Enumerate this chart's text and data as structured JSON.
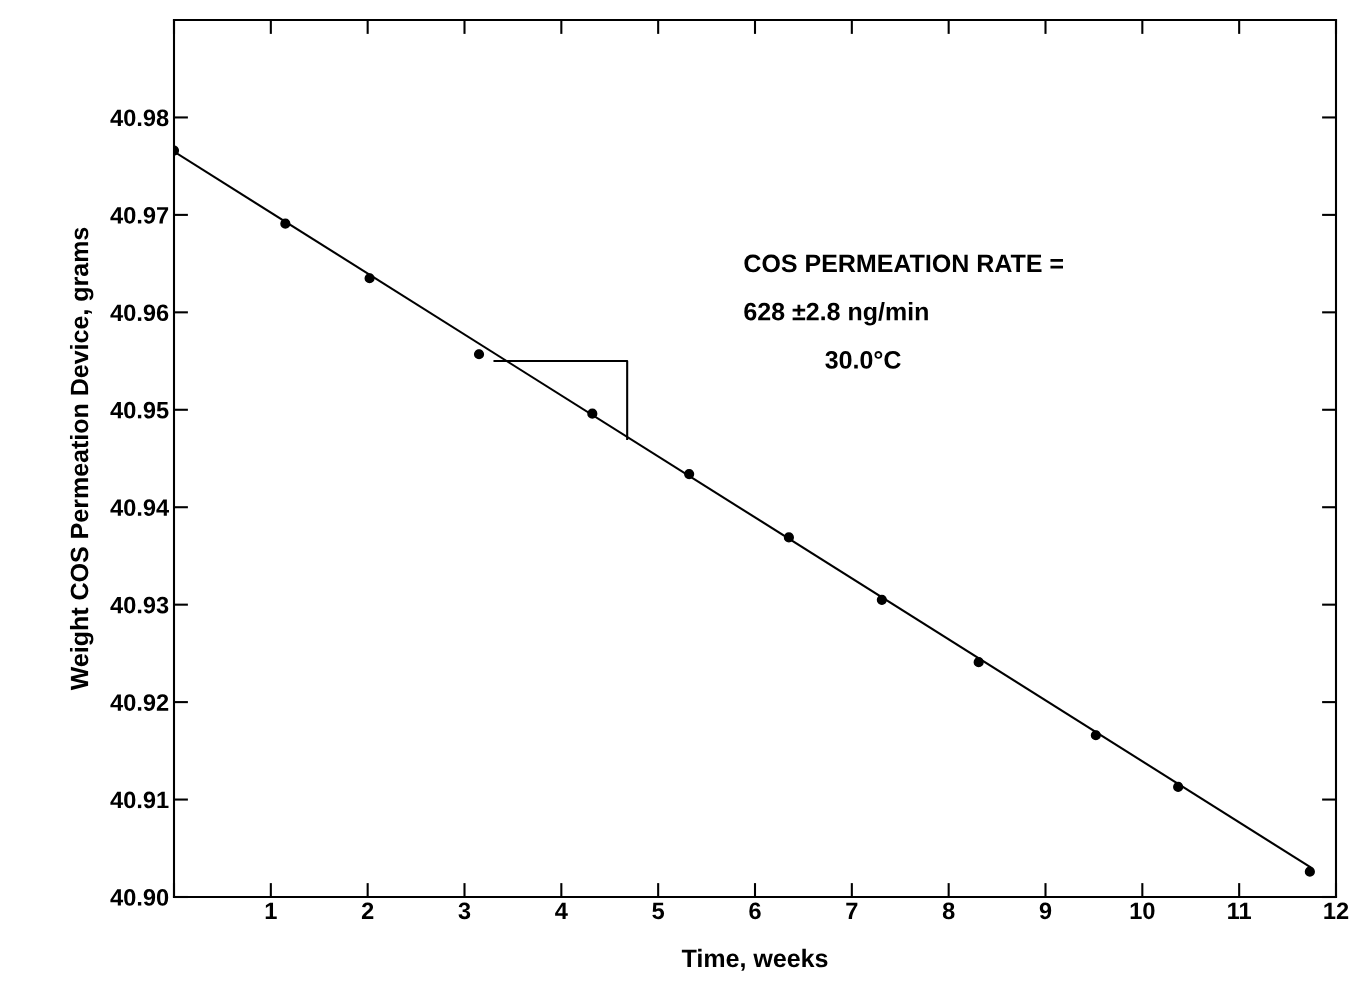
{
  "chart_data": {
    "type": "scatter",
    "xlabel": "Time, weeks",
    "ylabel": "Weight COS Permeation Device, grams",
    "xlim": [
      0,
      12
    ],
    "ylim": [
      40.9,
      40.99
    ],
    "xticks": [
      {
        "value": 0,
        "label": null
      },
      1,
      2,
      3,
      4,
      5,
      6,
      7,
      8,
      9,
      10,
      11,
      12
    ],
    "yticks": [
      "40.90",
      40.91,
      40.92,
      40.93,
      40.94,
      40.95,
      40.96,
      40.97,
      40.98
    ],
    "grid": false,
    "legend": false,
    "series": [
      {
        "type": "scatter",
        "marker": "circle",
        "color": "#000000",
        "x": [
          0,
          1.15,
          2.02,
          3.15,
          4.32,
          5.32,
          6.35,
          7.31,
          8.31,
          9.52,
          10.37,
          11.73
        ],
        "values": [
          40.9766,
          40.9691,
          40.9635,
          40.9557,
          40.9496,
          40.9434,
          40.9369,
          40.9305,
          40.9241,
          40.9166,
          40.9113,
          40.9026
        ]
      },
      {
        "type": "line",
        "color": "#000000",
        "x": [
          0,
          11.73
        ],
        "values": [
          40.9765,
          40.9031
        ]
      }
    ],
    "annotations": [
      "COS PERMEATION RATE =",
      "628 ±2.8 ng/min",
      "30.0°C"
    ]
  }
}
